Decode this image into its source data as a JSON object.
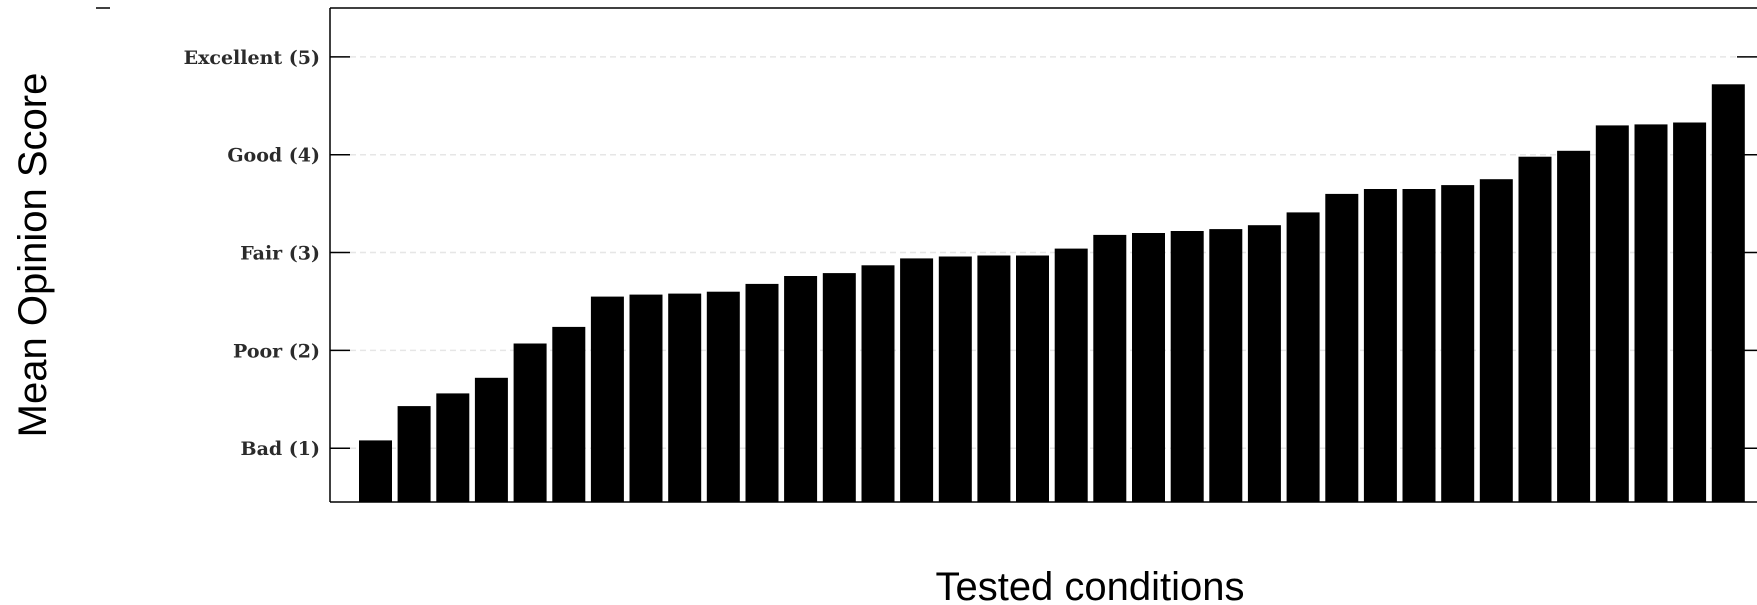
{
  "chart_data": {
    "type": "bar",
    "title": "",
    "xlabel": "Tested conditions",
    "ylabel": "Mean Opinion Score",
    "ylim": [
      0.45,
      5.5
    ],
    "yticks": [
      {
        "value": 1,
        "label": "Bad (1)"
      },
      {
        "value": 2,
        "label": "Poor (2)"
      },
      {
        "value": 3,
        "label": "Fair (3)"
      },
      {
        "value": 4,
        "label": "Good (4)"
      },
      {
        "value": 5,
        "label": "Excellent (5)"
      }
    ],
    "grid": true,
    "bar_color": "#000000",
    "values": [
      1.08,
      1.43,
      1.56,
      1.72,
      2.07,
      2.24,
      2.55,
      2.57,
      2.58,
      2.6,
      2.68,
      2.76,
      2.79,
      2.87,
      2.94,
      2.96,
      2.97,
      2.97,
      3.04,
      3.18,
      3.2,
      3.22,
      3.24,
      3.28,
      3.41,
      3.6,
      3.65,
      3.65,
      3.69,
      3.75,
      3.98,
      4.04,
      4.3,
      4.31,
      4.33,
      4.72
    ]
  }
}
